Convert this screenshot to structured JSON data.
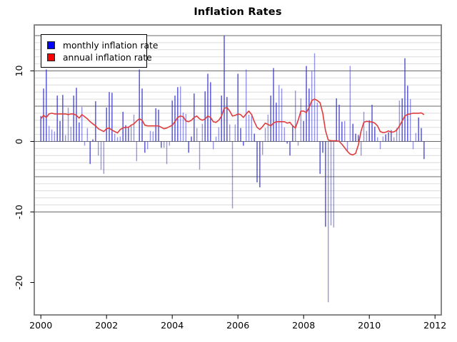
{
  "title": "Inflation Rates",
  "legend": {
    "items": [
      {
        "label": "monthly inflation rate",
        "color": "#0000FF"
      },
      {
        "label": "annual inflation rate",
        "color": "#FF0000"
      }
    ]
  },
  "chart_data": {
    "type": "bar+line",
    "title": "Inflation Rates",
    "x_start_year": 2000,
    "x_step": "month",
    "x_end": "2011-09",
    "xticks": [
      2000,
      2002,
      2004,
      2006,
      2008,
      2010,
      2012
    ],
    "yticks": [
      10,
      0,
      -10,
      -20
    ],
    "xlim": [
      1999.8,
      2012.2
    ],
    "ylim": [
      -24.6,
      16.5
    ],
    "grid": {
      "minor_step": 1,
      "minor_range": [
        -10,
        15
      ],
      "major_values": [
        -10,
        -5,
        0,
        5,
        10,
        15
      ]
    },
    "colors": {
      "bar": "#3434D2",
      "line": "#E03C3C",
      "grid_minor": "#DCDCDC",
      "grid_major": "#6B6B6B",
      "box": "#7A7A7A",
      "tick": "#000000"
    },
    "series": [
      {
        "name": "monthly inflation rate",
        "type": "bar",
        "color": "#0000FF",
        "values": [
          3.6,
          7.5,
          10.2,
          2.2,
          1.7,
          1.4,
          6.5,
          2.9,
          6.6,
          0.9,
          4.8,
          2.1,
          6.5,
          7.6,
          2.7,
          4.9,
          -0.6,
          1.9,
          -3.2,
          0.3,
          5.7,
          -2.0,
          -4.0,
          -4.6,
          4.8,
          7.0,
          6.9,
          1.1,
          0.6,
          0.7,
          4.2,
          2.3,
          2.1,
          2.3,
          3.8,
          -2.8,
          10.2,
          7.5,
          -1.6,
          -1.1,
          1.5,
          1.4,
          4.7,
          4.5,
          -0.9,
          -0.9,
          -3.2,
          -0.6,
          5.8,
          6.5,
          7.7,
          7.8,
          4.1,
          3.9,
          -1.6,
          0.7,
          6.8,
          1.9,
          -4.0,
          2.5,
          7.1,
          9.6,
          8.4,
          -1.1,
          0.7,
          2.0,
          6.5,
          15.0,
          6.3,
          2.4,
          -9.5,
          2.4,
          9.6,
          1.9,
          -0.6,
          10.2,
          3.8,
          3.6,
          1.1,
          -5.8,
          -6.5,
          -1.9,
          1.9,
          3.8,
          6.5,
          10.4,
          5.5,
          8.0,
          7.5,
          2.0,
          -0.3,
          -2.0,
          2.3,
          7.2,
          -0.6,
          6.1,
          2.9,
          10.7,
          7.5,
          10.0,
          12.5,
          5.5,
          -4.6,
          -1.6,
          -12.1,
          -22.8,
          -11.9,
          -12.2,
          6.1,
          5.2,
          2.8,
          2.9,
          -1.3,
          10.7,
          2.5,
          1.1,
          0.9,
          -2.0,
          4.2,
          1.5,
          3.0,
          5.2,
          2.1,
          0.6,
          -1.1,
          0.7,
          1.0,
          1.3,
          1.6,
          0.6,
          1.9,
          5.8,
          6.1,
          11.8,
          7.9,
          6.0,
          -1.1,
          1.2,
          3.4,
          1.9,
          -2.5
        ]
      },
      {
        "name": "annual inflation rate",
        "type": "line",
        "color": "#FF0000",
        "values": [
          3.2,
          3.7,
          3.4,
          3.9,
          4.0,
          3.9,
          3.9,
          3.9,
          3.9,
          3.9,
          3.8,
          3.9,
          3.9,
          3.7,
          3.3,
          3.8,
          3.5,
          3.2,
          2.8,
          2.5,
          2.2,
          1.8,
          1.6,
          1.4,
          1.8,
          1.9,
          1.6,
          1.4,
          1.2,
          1.7,
          1.9,
          2.0,
          2.0,
          2.3,
          2.5,
          2.9,
          3.2,
          3.0,
          2.3,
          2.2,
          2.2,
          2.2,
          2.2,
          2.2,
          2.0,
          1.8,
          1.9,
          2.1,
          2.3,
          2.8,
          3.4,
          3.6,
          3.5,
          2.9,
          2.8,
          3.0,
          3.4,
          3.6,
          3.2,
          3.0,
          3.2,
          3.6,
          3.4,
          2.8,
          2.7,
          3.0,
          3.6,
          4.7,
          4.8,
          4.3,
          3.6,
          3.7,
          3.9,
          3.8,
          3.4,
          3.9,
          4.3,
          3.8,
          2.8,
          2.0,
          1.7,
          2.1,
          2.6,
          2.4,
          2.2,
          2.6,
          2.8,
          2.8,
          2.8,
          2.8,
          2.6,
          2.7,
          2.2,
          1.9,
          3.0,
          4.3,
          4.3,
          4.1,
          4.8,
          5.8,
          6.0,
          5.8,
          5.5,
          4.0,
          1.5,
          0.2,
          0.1,
          0.1,
          0.1,
          0.0,
          -0.4,
          -0.9,
          -1.4,
          -1.8,
          -1.9,
          -1.7,
          -0.5,
          1.5,
          2.7,
          2.85,
          2.8,
          2.75,
          2.6,
          2.2,
          1.4,
          1.25,
          1.3,
          1.5,
          1.3,
          1.35,
          1.6,
          2.2,
          2.9,
          3.6,
          3.85,
          3.9,
          4.0,
          4.0,
          4.0,
          4.05,
          3.8
        ]
      }
    ]
  }
}
